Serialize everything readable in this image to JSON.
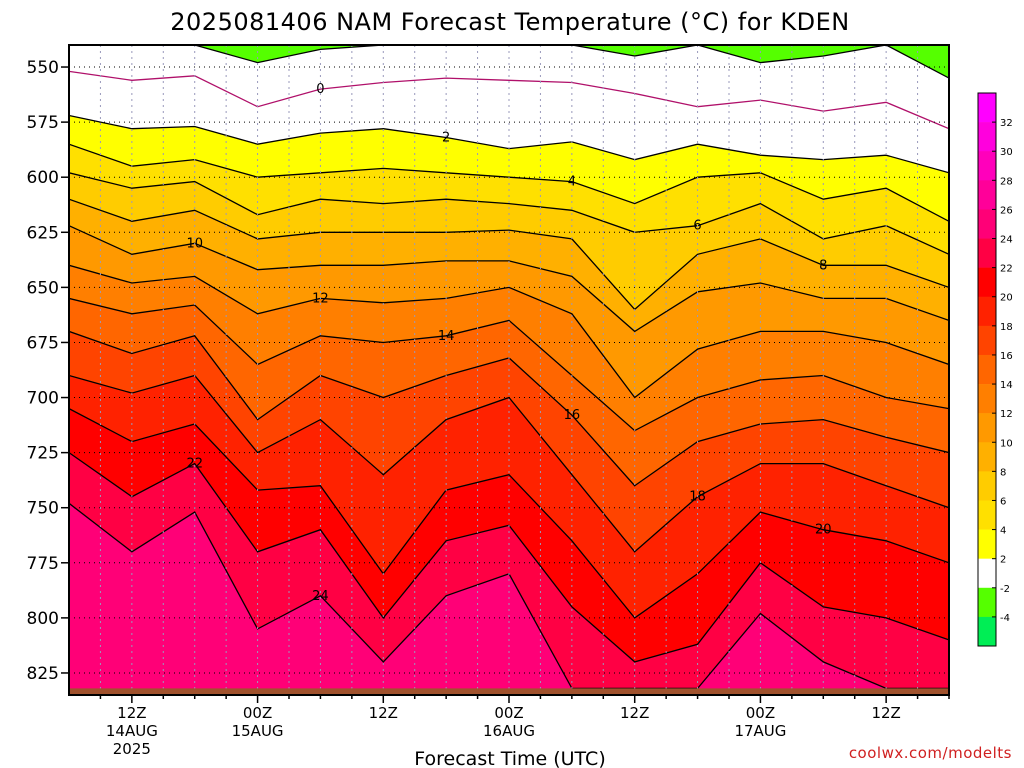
{
  "chart_data": {
    "type": "heatmap",
    "title": "2025081406 NAM Forecast Temperature (°C) for KDEN",
    "xlabel": "Forecast Time (UTC)",
    "credit": "coolwx.com/modelts",
    "y_axis": {
      "ylim": [
        540,
        835
      ],
      "ticks": [
        "550",
        "575",
        "600",
        "625",
        "650",
        "675",
        "700",
        "725",
        "750",
        "775",
        "800",
        "825"
      ],
      "tick_values": [
        550,
        575,
        600,
        625,
        650,
        675,
        700,
        725,
        750,
        775,
        800,
        825
      ]
    },
    "x_axis": {
      "xlim": [
        6,
        90
      ],
      "ticks": [
        {
          "hour": 12,
          "lines": [
            "12Z",
            "14AUG",
            "2025"
          ]
        },
        {
          "hour": 24,
          "lines": [
            "00Z",
            "15AUG"
          ]
        },
        {
          "hour": 36,
          "lines": [
            "12Z"
          ]
        },
        {
          "hour": 48,
          "lines": [
            "00Z",
            "16AUG"
          ]
        },
        {
          "hour": 60,
          "lines": [
            "12Z"
          ]
        },
        {
          "hour": 72,
          "lines": [
            "00Z",
            "17AUG"
          ]
        },
        {
          "hour": 84,
          "lines": [
            "12Z"
          ]
        }
      ]
    },
    "colorbar": {
      "labels": [
        "32",
        "30",
        "28",
        "26",
        "24",
        "22",
        "20",
        "18",
        "16",
        "14",
        "12",
        "10",
        "8",
        "6",
        "4",
        "2",
        "-2",
        "-4"
      ],
      "levels": [
        -6,
        -4,
        -2,
        2,
        4,
        6,
        8,
        10,
        12,
        14,
        16,
        18,
        20,
        22,
        24,
        26,
        28,
        30,
        32,
        34
      ],
      "colors": [
        "#00ee55",
        "#55ff00",
        "#ffffff",
        "#ffff00",
        "#ffe000",
        "#ffcc00",
        "#ffb000",
        "#ff9900",
        "#ff7f00",
        "#ff6600",
        "#ff4400",
        "#ff2200",
        "#ff0000",
        "#ff0044",
        "#ff0077",
        "#ff0099",
        "#ff00bb",
        "#ff00dd",
        "#ff00ff"
      ]
    },
    "ground_color": "#a0522d",
    "surface_pressure_hpa": 832,
    "isotherm_levels": [
      -2,
      0,
      2,
      4,
      6,
      8,
      10,
      12,
      14,
      16,
      18,
      20,
      22,
      24
    ],
    "isotherm_pressure_at_hour": {
      "hours": [
        6,
        12,
        18,
        24,
        30,
        36,
        42,
        48,
        54,
        60,
        66,
        72,
        78,
        84,
        90
      ],
      "-2": [
        540,
        540,
        540,
        548,
        542,
        540,
        540,
        540,
        540,
        545,
        540,
        548,
        545,
        540,
        555
      ],
      "0": [
        552,
        556,
        554,
        568,
        560,
        557,
        555,
        556,
        557,
        562,
        568,
        565,
        570,
        566,
        578
      ],
      "2": [
        572,
        578,
        577,
        585,
        580,
        578,
        582,
        587,
        584,
        592,
        585,
        590,
        592,
        590,
        598
      ],
      "4": [
        585,
        595,
        592,
        600,
        598,
        596,
        598,
        600,
        602,
        612,
        600,
        598,
        610,
        605,
        620
      ],
      "6": [
        598,
        605,
        602,
        617,
        610,
        612,
        610,
        612,
        615,
        625,
        622,
        612,
        628,
        622,
        635
      ],
      "8": [
        610,
        620,
        615,
        628,
        625,
        625,
        625,
        624,
        628,
        660,
        635,
        628,
        640,
        640,
        650
      ],
      "10": [
        622,
        635,
        630,
        642,
        640,
        640,
        638,
        638,
        645,
        670,
        652,
        648,
        655,
        655,
        665
      ],
      "12": [
        640,
        648,
        645,
        662,
        655,
        657,
        655,
        650,
        662,
        700,
        678,
        670,
        670,
        675,
        685
      ],
      "14": [
        655,
        662,
        658,
        685,
        672,
        675,
        672,
        665,
        690,
        715,
        700,
        692,
        690,
        700,
        705
      ],
      "16": [
        670,
        680,
        672,
        710,
        690,
        700,
        690,
        682,
        708,
        740,
        720,
        712,
        710,
        718,
        725
      ],
      "18": [
        690,
        698,
        690,
        725,
        710,
        735,
        710,
        700,
        735,
        770,
        745,
        730,
        730,
        740,
        750
      ],
      "20": [
        705,
        720,
        712,
        742,
        740,
        780,
        742,
        735,
        765,
        800,
        780,
        752,
        760,
        765,
        775
      ],
      "22": [
        725,
        745,
        730,
        770,
        760,
        800,
        765,
        758,
        795,
        820,
        812,
        775,
        795,
        800,
        810
      ],
      "24": [
        748,
        770,
        752,
        805,
        790,
        820,
        790,
        780,
        832,
        832,
        832,
        798,
        820,
        832,
        832
      ]
    }
  }
}
